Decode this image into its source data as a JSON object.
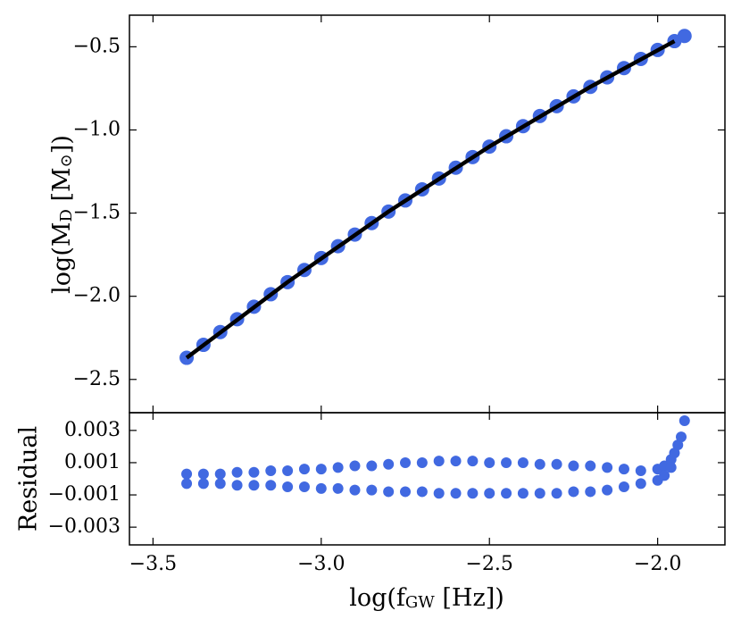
{
  "chart_data": [
    {
      "type": "scatter",
      "ylabel_parts": [
        "log(M",
        "D",
        " [M",
        "⊙",
        "])"
      ],
      "ylim": [
        -2.7,
        -0.31
      ],
      "yticks": [
        {
          "value": -0.5,
          "label": "−0.5"
        },
        {
          "value": -1.0,
          "label": "−1.0"
        },
        {
          "value": -1.5,
          "label": "−1.5"
        },
        {
          "value": -2.0,
          "label": "−2.0"
        },
        {
          "value": -2.5,
          "label": "−2.5"
        }
      ],
      "series": [
        {
          "mode": "markers",
          "color": "#4169e1",
          "x": [
            -3.4,
            -3.35,
            -3.3,
            -3.25,
            -3.2,
            -3.15,
            -3.1,
            -3.05,
            -3.0,
            -2.95,
            -2.9,
            -2.85,
            -2.8,
            -2.75,
            -2.7,
            -2.65,
            -2.6,
            -2.55,
            -2.5,
            -2.45,
            -2.4,
            -2.35,
            -2.3,
            -2.25,
            -2.2,
            -2.15,
            -2.1,
            -2.05,
            -2.0,
            -1.95,
            -1.92
          ],
          "values": [
            -2.37,
            -2.292,
            -2.215,
            -2.138,
            -2.063,
            -1.988,
            -1.915,
            -1.842,
            -1.77,
            -1.699,
            -1.629,
            -1.56,
            -1.491,
            -1.424,
            -1.357,
            -1.292,
            -1.227,
            -1.163,
            -1.1,
            -1.038,
            -0.977,
            -0.916,
            -0.857,
            -0.798,
            -0.741,
            -0.684,
            -0.628,
            -0.573,
            -0.519,
            -0.466,
            -0.435
          ]
        },
        {
          "mode": "line",
          "color": "#000000",
          "x": [
            -3.4,
            -3.1,
            -2.8,
            -2.5,
            -2.2,
            -1.95
          ],
          "values": [
            -2.37,
            -1.915,
            -1.491,
            -1.1,
            -0.741,
            -0.466
          ]
        }
      ]
    },
    {
      "type": "scatter",
      "ylabel": "Residual",
      "xlabel_parts": [
        "log(f",
        "GW",
        " [Hz])"
      ],
      "xlim": [
        -3.57,
        -1.8
      ],
      "xticks": [
        {
          "value": -3.5,
          "label": "−3.5"
        },
        {
          "value": -3.0,
          "label": "−3.0"
        },
        {
          "value": -2.5,
          "label": "−2.5"
        },
        {
          "value": -2.0,
          "label": "−2.0"
        }
      ],
      "ylim": [
        -0.0041,
        0.0041
      ],
      "yticks": [
        0.003,
        0.001,
        {
          "value": -0.001,
          "label": "−0.001"
        },
        {
          "value": -0.003,
          "label": "−0.003"
        }
      ],
      "color": "#4169e1",
      "x": [
        -3.4,
        -3.35,
        -3.3,
        -3.25,
        -3.2,
        -3.15,
        -3.1,
        -3.05,
        -3.0,
        -2.95,
        -2.9,
        -2.85,
        -2.8,
        -2.75,
        -2.7,
        -2.65,
        -2.6,
        -2.55,
        -2.5,
        -2.45,
        -2.4,
        -2.35,
        -2.3,
        -2.25,
        -2.2,
        -2.15,
        -3.4,
        -3.35,
        -3.3,
        -3.25,
        -3.2,
        -3.15,
        -3.1,
        -3.05,
        -3.0,
        -2.95,
        -2.9,
        -2.85,
        -2.8,
        -2.75,
        -2.7,
        -2.65,
        -2.6,
        -2.55,
        -2.5,
        -2.45,
        -2.4,
        -2.35,
        -2.3,
        -2.25,
        -2.2,
        -2.15,
        -2.1,
        -2.1,
        -2.05,
        -2.05,
        -2.0,
        -2.0,
        -1.98,
        -1.98,
        -1.96,
        -1.96,
        -1.95,
        -1.94,
        -1.93,
        -1.92
      ],
      "values": [
        0.0003,
        0.0003,
        0.0003,
        0.0004,
        0.0004,
        0.0005,
        0.0005,
        0.0006,
        0.0006,
        0.0007,
        0.0008,
        0.0008,
        0.0009,
        0.001,
        0.001,
        0.0011,
        0.0011,
        0.0011,
        0.001,
        0.001,
        0.001,
        0.0009,
        0.0009,
        0.0008,
        0.0008,
        0.0007,
        -0.0003,
        -0.0003,
        -0.0003,
        -0.0004,
        -0.0004,
        -0.0004,
        -0.0005,
        -0.0005,
        -0.0006,
        -0.0006,
        -0.0007,
        -0.0007,
        -0.0008,
        -0.0008,
        -0.0008,
        -0.0009,
        -0.0009,
        -0.0009,
        -0.0009,
        -0.0009,
        -0.0009,
        -0.0009,
        -0.0009,
        -0.0008,
        -0.0008,
        -0.0007,
        0.0006,
        -0.0005,
        0.0005,
        -0.0003,
        0.0006,
        -0.0001,
        0.0008,
        0.0002,
        0.0012,
        0.0007,
        0.0016,
        0.0021,
        0.0026,
        0.0036
      ]
    }
  ]
}
